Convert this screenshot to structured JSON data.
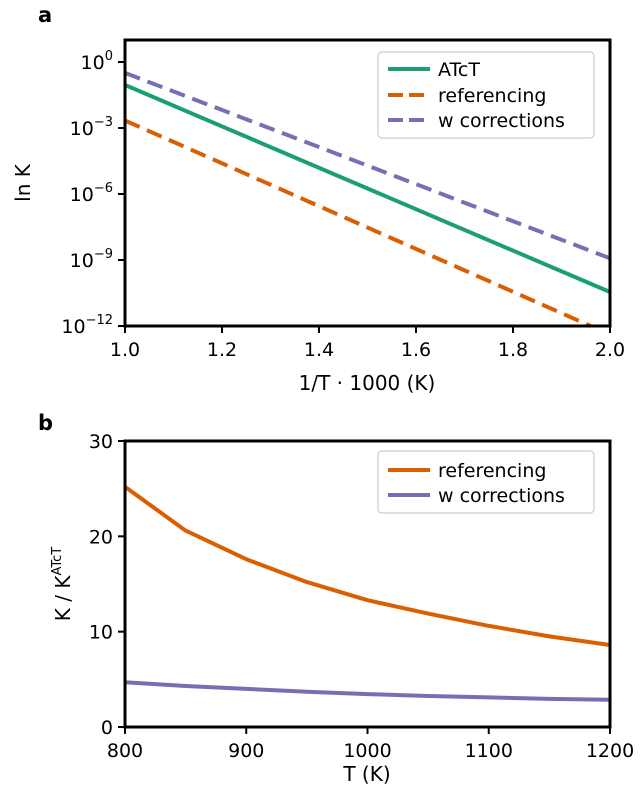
{
  "chart_data": [
    {
      "panel": "a",
      "type": "line",
      "xlabel": "1/T · 1000 (K)",
      "ylabel": "ln K",
      "yscale": "log",
      "xlim": [
        1.0,
        2.0
      ],
      "ylim": [
        1e-12,
        10.0
      ],
      "x_ticks": [
        {
          "v": 1.0,
          "label": "1.0"
        },
        {
          "v": 1.2,
          "label": "1.2"
        },
        {
          "v": 1.4,
          "label": "1.4"
        },
        {
          "v": 1.6,
          "label": "1.6"
        },
        {
          "v": 1.8,
          "label": "1.8"
        },
        {
          "v": 2.0,
          "label": "2.0"
        }
      ],
      "y_ticks": [
        {
          "exp": 0,
          "base": "10",
          "sup": "0"
        },
        {
          "exp": -3,
          "base": "10",
          "sup": "−3"
        },
        {
          "exp": -6,
          "base": "10",
          "sup": "−6"
        },
        {
          "exp": -9,
          "base": "10",
          "sup": "−9"
        },
        {
          "exp": -12,
          "base": "10",
          "sup": "−12"
        }
      ],
      "legend_position": "top-right",
      "series": [
        {
          "name": "ATcT",
          "color": "#1b9e77",
          "style": "solid",
          "x": [
            1.0,
            2.0
          ],
          "y": [
            0.09,
            3.5e-11
          ]
        },
        {
          "name": "referencing",
          "color": "#d95f02",
          "style": "dashed",
          "x": [
            1.0,
            1.96
          ],
          "y": [
            0.0022,
            1e-12
          ]
        },
        {
          "name": "w corrections",
          "color": "#7570b3",
          "style": "dashed",
          "x": [
            1.0,
            2.0
          ],
          "y": [
            0.32,
            1.2e-09
          ]
        }
      ]
    },
    {
      "panel": "b",
      "type": "line",
      "xlabel": "T (K)",
      "ylabel_main": "K / K",
      "ylabel_sup": "ATcT",
      "xlim": [
        800,
        1200
      ],
      "ylim": [
        0,
        30
      ],
      "x_ticks": [
        {
          "v": 800,
          "label": "800"
        },
        {
          "v": 900,
          "label": "900"
        },
        {
          "v": 1000,
          "label": "1000"
        },
        {
          "v": 1100,
          "label": "1100"
        },
        {
          "v": 1200,
          "label": "1200"
        }
      ],
      "y_ticks": [
        {
          "v": 0,
          "label": "0"
        },
        {
          "v": 10,
          "label": "10"
        },
        {
          "v": 20,
          "label": "20"
        },
        {
          "v": 30,
          "label": "30"
        }
      ],
      "legend_position": "top-right",
      "series": [
        {
          "name": "referencing",
          "color": "#d95f02",
          "style": "solid",
          "x": [
            800,
            850,
            900,
            950,
            1000,
            1050,
            1100,
            1150,
            1200
          ],
          "y": [
            25.2,
            20.6,
            17.6,
            15.2,
            13.3,
            11.9,
            10.6,
            9.5,
            8.6
          ]
        },
        {
          "name": "w corrections",
          "color": "#7570b3",
          "style": "solid",
          "x": [
            800,
            850,
            900,
            950,
            1000,
            1050,
            1100,
            1150,
            1200
          ],
          "y": [
            4.7,
            4.3,
            4.0,
            3.7,
            3.45,
            3.25,
            3.1,
            2.95,
            2.85
          ]
        }
      ]
    }
  ]
}
